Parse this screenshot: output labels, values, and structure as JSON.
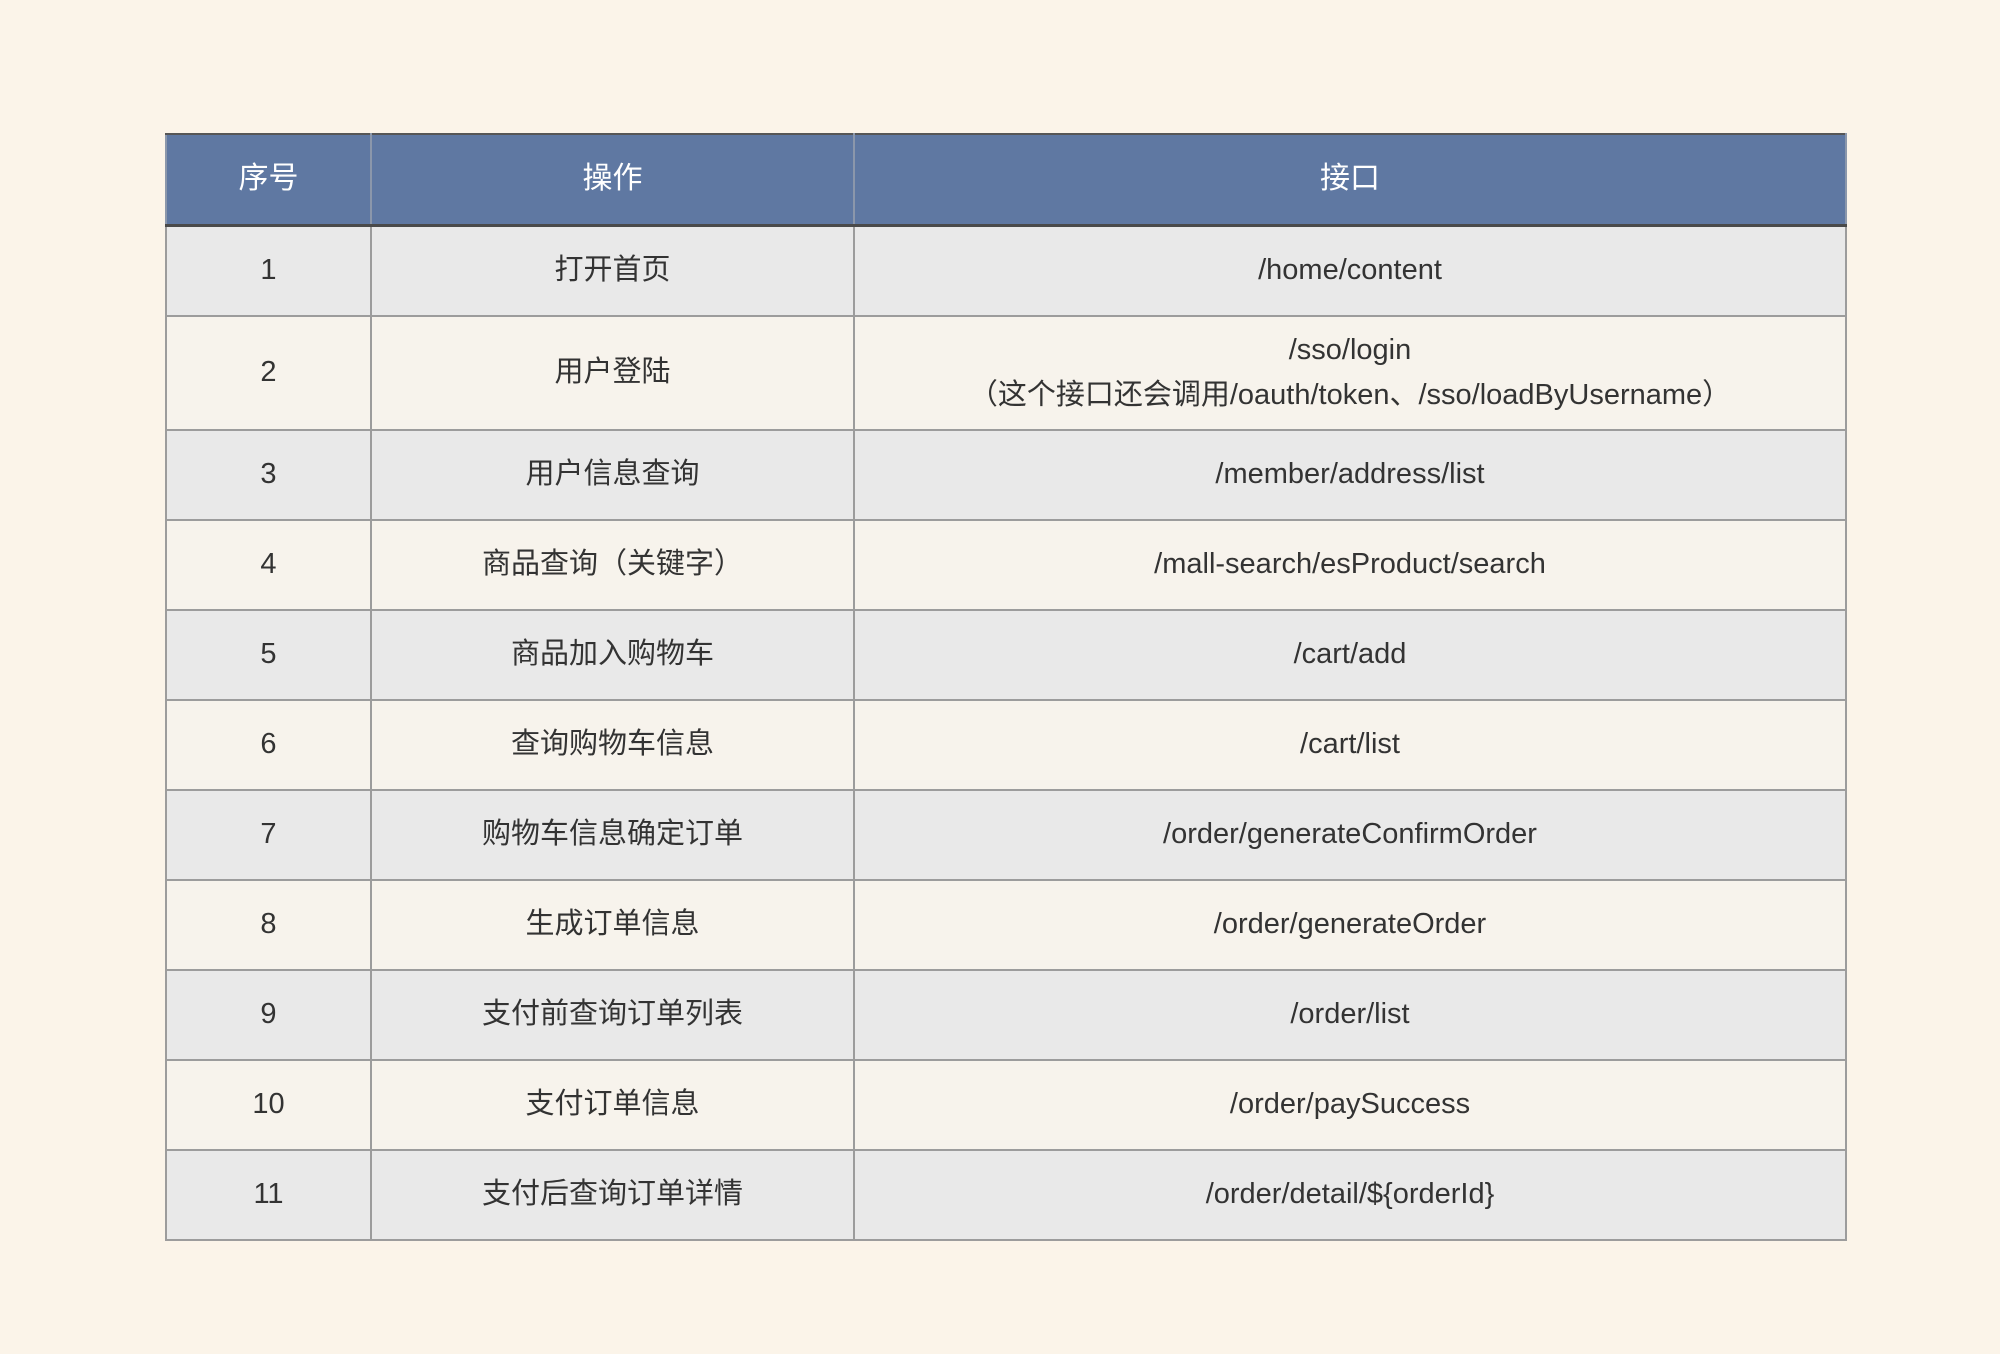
{
  "page": {
    "background": "#fbf4e9"
  },
  "table": {
    "header_bg": "#5f78a2",
    "header_text_color": "#ffffff",
    "row_alt_colors": [
      "#e9e9e9",
      "#f7f3ec"
    ],
    "columns": [
      {
        "key": "no",
        "label": "序号"
      },
      {
        "key": "operation",
        "label": "操作"
      },
      {
        "key": "api",
        "label": "接口"
      }
    ],
    "rows": [
      {
        "no": "1",
        "operation": "打开首页",
        "api": "/home/content"
      },
      {
        "no": "2",
        "operation": "用户登陆",
        "api": "/sso/login",
        "api_note": "（这个接口还会调用/oauth/token、/sso/loadByUsername）"
      },
      {
        "no": "3",
        "operation": "用户信息查询",
        "api": "/member/address/list"
      },
      {
        "no": "4",
        "operation": "商品查询（关键字）",
        "api": "/mall-search/esProduct/search"
      },
      {
        "no": "5",
        "operation": "商品加入购物车",
        "api": "/cart/add"
      },
      {
        "no": "6",
        "operation": "查询购物车信息",
        "api": "/cart/list"
      },
      {
        "no": "7",
        "operation": "购物车信息确定订单",
        "api": "/order/generateConfirmOrder"
      },
      {
        "no": "8",
        "operation": "生成订单信息",
        "api": "/order/generateOrder"
      },
      {
        "no": "9",
        "operation": "支付前查询订单列表",
        "api": "/order/list"
      },
      {
        "no": "10",
        "operation": "支付订单信息",
        "api": "/order/paySuccess"
      },
      {
        "no": "11",
        "operation": "支付后查询订单详情",
        "api": "/order/detail/${orderId}"
      }
    ]
  }
}
